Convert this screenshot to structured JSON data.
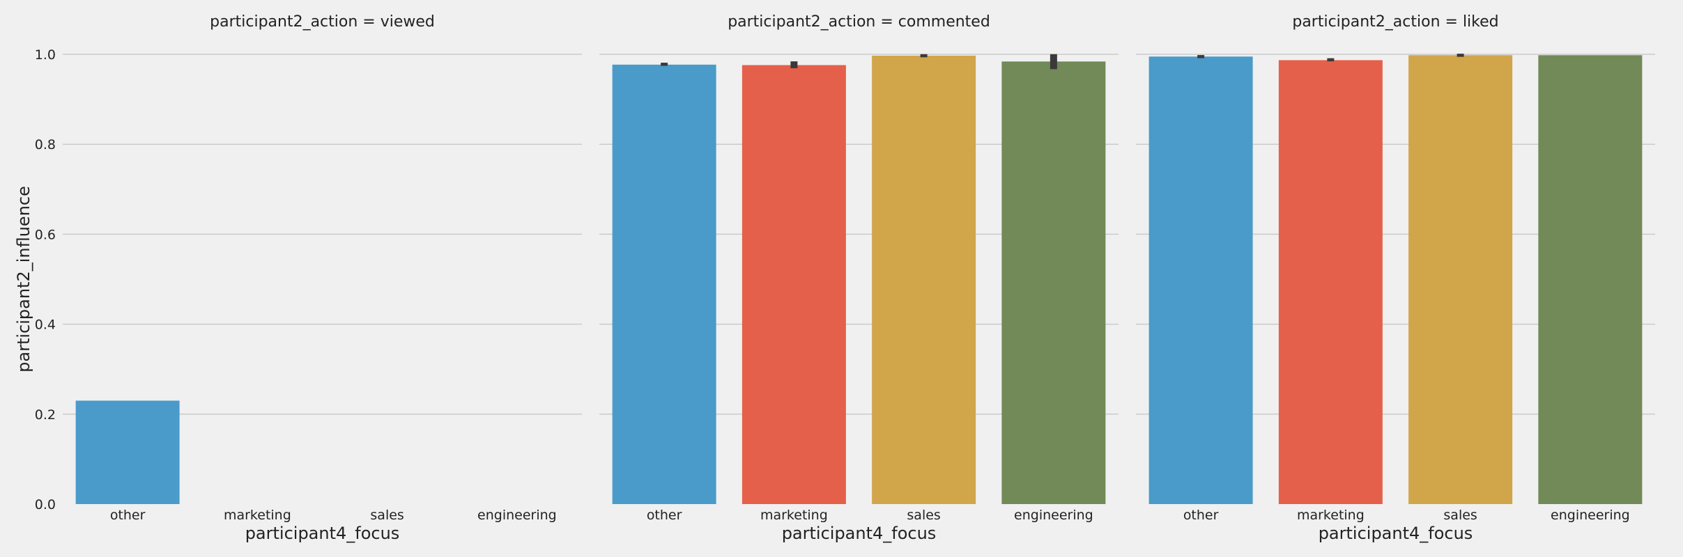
{
  "chart_data": {
    "type": "bar",
    "ylabel": "participant2_influence",
    "ylim": [
      0,
      1.0
    ],
    "yticks": [
      "0.0",
      "0.2",
      "0.4",
      "0.6",
      "0.8",
      "1.0"
    ],
    "grid": true,
    "colors": [
      "#4a9bc9",
      "#e5604a",
      "#d1a54a",
      "#718a57"
    ],
    "errorbar_color": "#3a3a3a",
    "facets": [
      {
        "title": "participant2_action = viewed",
        "xlabel": "participant4_focus",
        "categories": [
          "other",
          "marketing",
          "sales",
          "engineering"
        ],
        "values": [
          0.23,
          0.0,
          0.0,
          0.0
        ],
        "errors": [
          null,
          null,
          null,
          null
        ]
      },
      {
        "title": "participant2_action = commented",
        "xlabel": "participant4_focus",
        "categories": [
          "other",
          "marketing",
          "sales",
          "engineering"
        ],
        "values": [
          0.977,
          0.976,
          0.997,
          0.984
        ],
        "errors": [
          [
            0.975,
            0.979
          ],
          [
            0.969,
            0.982
          ],
          [
            0.996,
            0.998
          ],
          [
            0.967,
            0.998
          ]
        ]
      },
      {
        "title": "participant2_action = liked",
        "xlabel": "participant4_focus",
        "categories": [
          "other",
          "marketing",
          "sales",
          "engineering"
        ],
        "values": [
          0.995,
          0.987,
          0.998,
          0.998
        ],
        "errors": [
          [
            0.994,
            0.996
          ],
          [
            0.985,
            0.989
          ],
          [
            0.997,
            0.999
          ],
          null
        ]
      }
    ]
  }
}
